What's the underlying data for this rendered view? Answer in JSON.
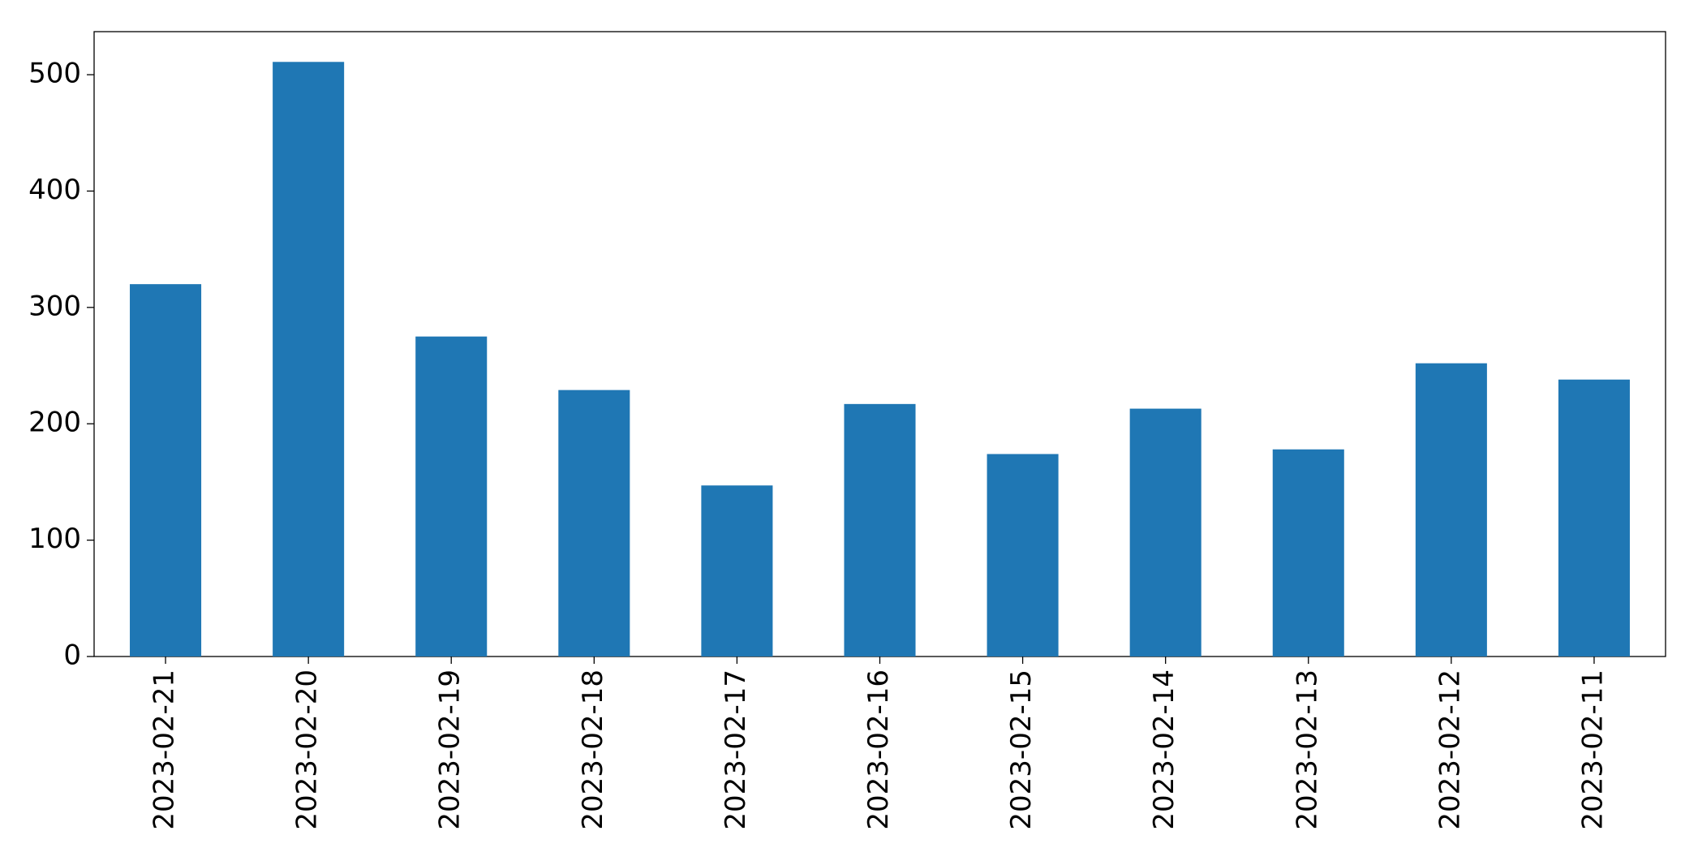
{
  "chart_data": {
    "type": "bar",
    "categories": [
      "2023-02-21",
      "2023-02-20",
      "2023-02-19",
      "2023-02-18",
      "2023-02-17",
      "2023-02-16",
      "2023-02-15",
      "2023-02-14",
      "2023-02-13",
      "2023-02-12",
      "2023-02-11"
    ],
    "values": [
      320,
      511,
      275,
      229,
      147,
      217,
      174,
      213,
      178,
      252,
      238
    ],
    "color": "#1f77b4",
    "ylim": [
      0,
      537
    ],
    "yticks": [
      0,
      100,
      200,
      300,
      400,
      500
    ],
    "grid": false
  }
}
